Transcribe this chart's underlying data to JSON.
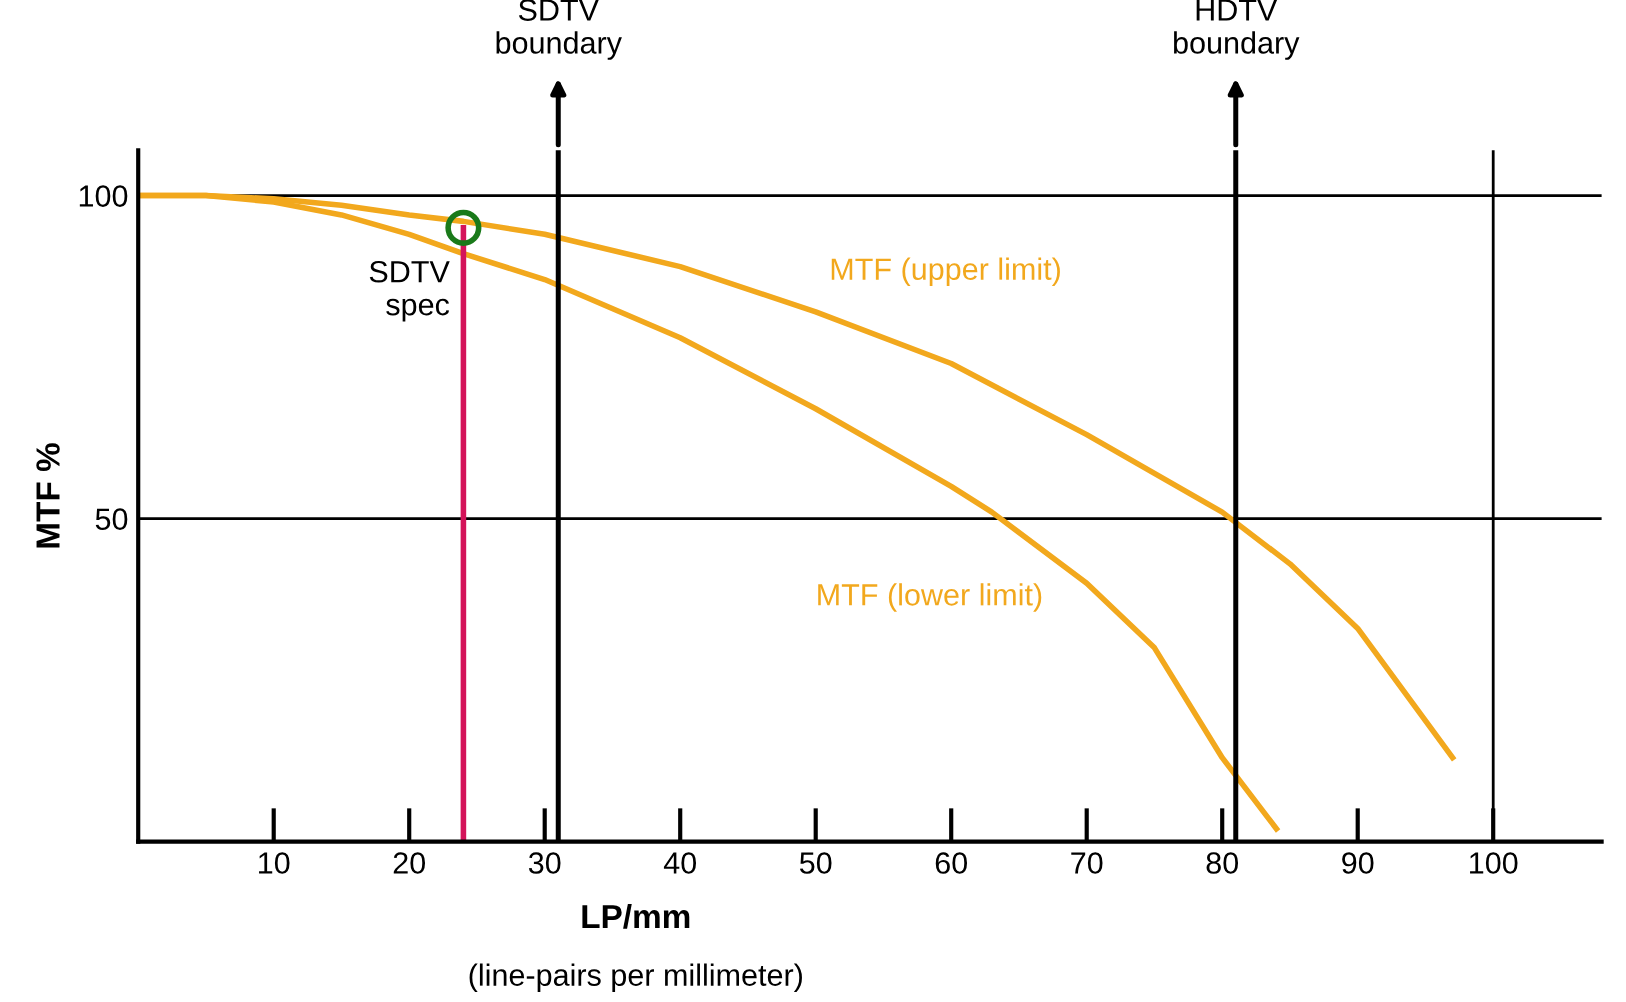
{
  "chart_data": {
    "type": "line",
    "xlabel": "LP/mm",
    "ylabel": "MTF %",
    "xlim": [
      0,
      108
    ],
    "ylim": [
      0,
      107
    ],
    "xticks": [
      10,
      20,
      30,
      40,
      50,
      60,
      70,
      80,
      90,
      100
    ],
    "yticks": [
      50,
      100
    ],
    "grid": "y",
    "legend": false,
    "marker": "none",
    "line_style": "solid",
    "series": [
      {
        "name": "MTF (upper limit)",
        "color": "#f2a81d",
        "x": [
          0,
          5,
          10,
          15,
          20,
          24,
          30,
          40,
          50,
          60,
          70,
          80,
          85,
          90,
          97
        ],
        "values": [
          100,
          100,
          99.5,
          98.5,
          97,
          96,
          94,
          89,
          82,
          74,
          63,
          51,
          43,
          33,
          13
        ]
      },
      {
        "name": "MTF (lower limit)",
        "color": "#f2a81d",
        "x": [
          0,
          5,
          10,
          15,
          20,
          24,
          30,
          40,
          50,
          60,
          63,
          70,
          75,
          80,
          84
        ],
        "values": [
          100,
          100,
          99,
          97,
          94,
          91,
          87,
          78,
          67,
          55,
          51,
          40,
          30,
          13,
          2
        ]
      },
      {
        "color": "#d4145a",
        "x": [
          24,
          24
        ],
        "values": [
          0,
          95
        ],
        "marker": "circle"
      }
    ],
    "ref_lines": [
      {
        "axis": "x",
        "value": 31,
        "label": "SDTV\nboundary",
        "color": "#000000"
      },
      {
        "axis": "x",
        "value": 81,
        "label": "HDTV\nboundary",
        "color": "#000000"
      },
      {
        "axis": "x",
        "value": 100,
        "color": "#000000"
      }
    ],
    "annotations": [
      {
        "text": "SDTV\nspec",
        "x": 24,
        "y": 95
      },
      "(line-pairs per millimeter)"
    ]
  }
}
